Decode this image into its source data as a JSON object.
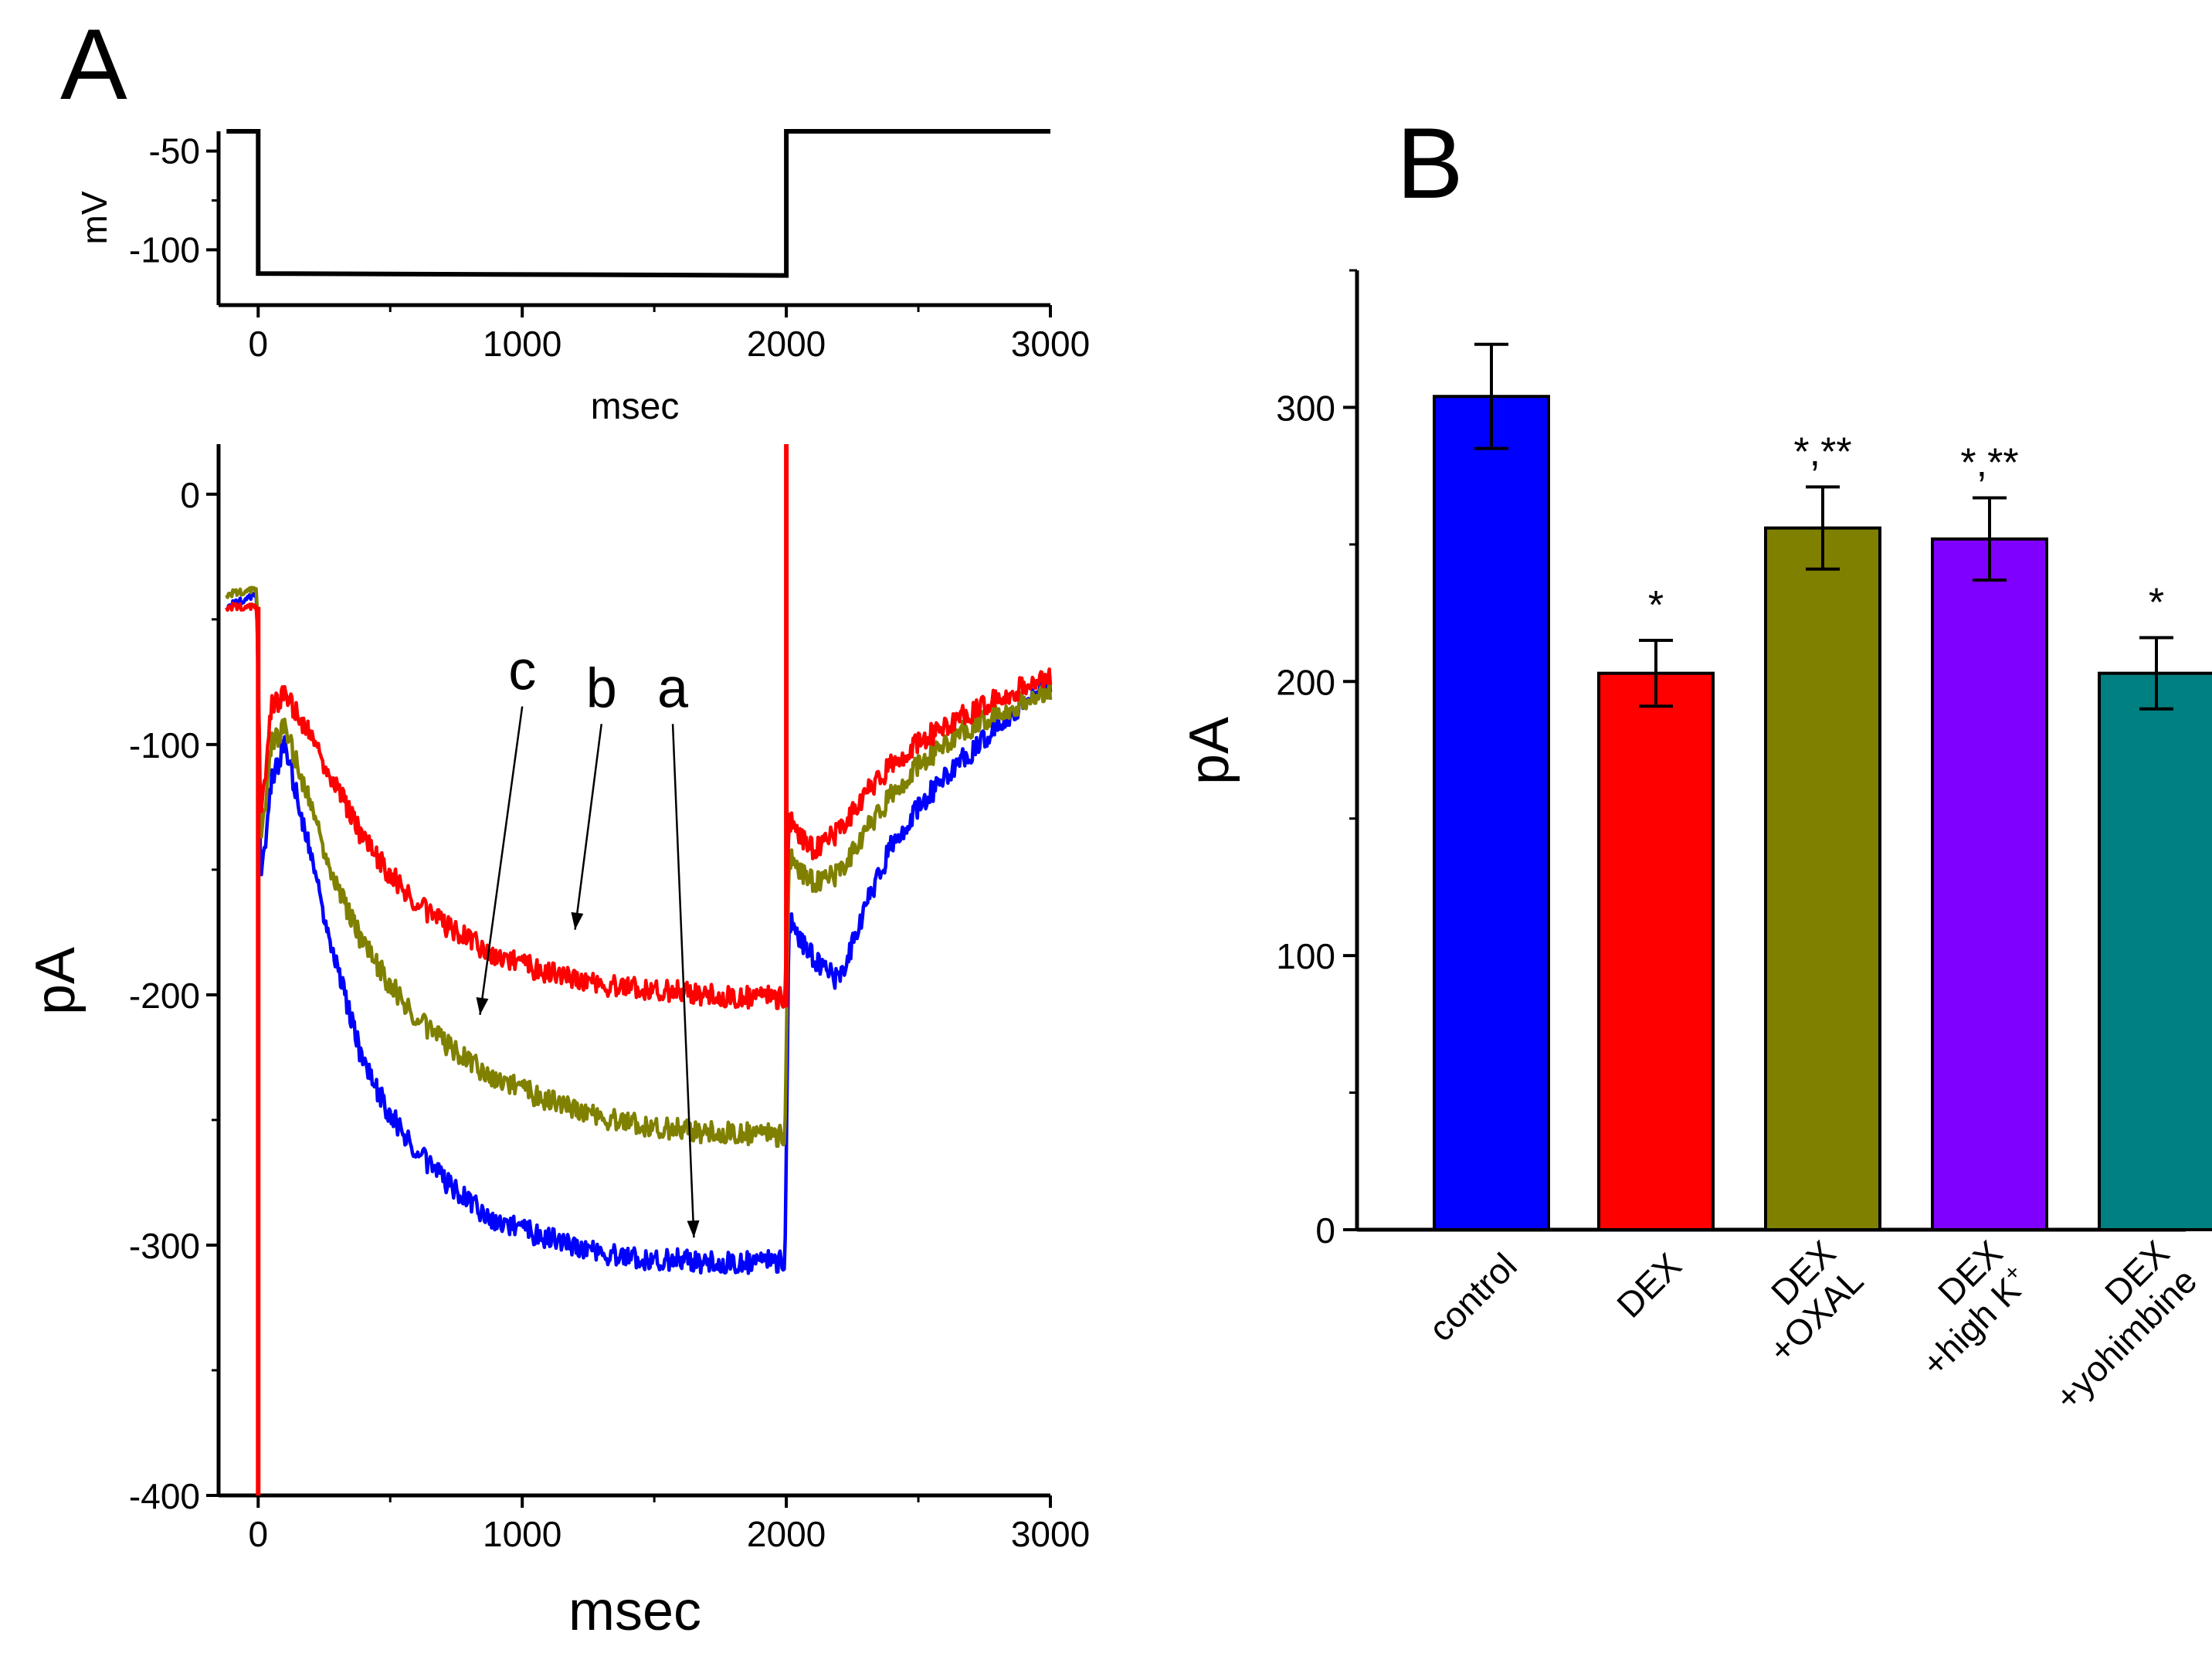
{
  "chart_data": [
    {
      "panel": "A",
      "type": "line",
      "title": "",
      "ylabel": "mV",
      "xlabel": "msec",
      "xlim": [
        -150,
        3000
      ],
      "ylim": [
        -128,
        -40
      ],
      "xticks": [
        0,
        1000,
        2000,
        3000
      ],
      "yticks": [
        -50,
        -100
      ],
      "grid": false,
      "series": [
        {
          "name": "voltage protocol",
          "color": "#000000",
          "points": [
            [
              -120,
              -40
            ],
            [
              0,
              -40
            ],
            [
              0,
              -112
            ],
            [
              2000,
              -113
            ],
            [
              2000,
              -40
            ],
            [
              3000,
              -40
            ]
          ]
        }
      ]
    },
    {
      "panel": "A",
      "type": "line",
      "title": "",
      "ylabel": "pA",
      "xlabel": "msec",
      "xlim": [
        -150,
        3000
      ],
      "ylim": [
        -400,
        20
      ],
      "xticks": [
        0,
        1000,
        2000,
        3000
      ],
      "yticks": [
        0,
        -100,
        -200,
        -300,
        -400
      ],
      "grid": false,
      "series": [
        {
          "name": "a",
          "color": "#0000ff",
          "x": [
            -120,
            -5,
            10,
            50,
            100,
            200,
            300,
            400,
            500,
            600,
            700,
            800,
            900,
            1000,
            1100,
            1200,
            1300,
            1400,
            1500,
            1600,
            1700,
            1800,
            1900,
            1995,
            2010,
            2100,
            2200,
            2300,
            2400,
            2500,
            2600,
            2700,
            2800,
            2900,
            3000
          ],
          "y": [
            -45,
            -40,
            -155,
            -115,
            -100,
            -145,
            -190,
            -228,
            -248,
            -262,
            -274,
            -283,
            -290,
            -294,
            -297,
            -301,
            -303,
            -305,
            -306,
            -306,
            -307,
            -307,
            -307,
            -306,
            -170,
            -185,
            -195,
            -165,
            -140,
            -125,
            -113,
            -103,
            -93,
            -83,
            -75
          ]
        },
        {
          "name": "b",
          "color": "#ff0000",
          "x": [
            -120,
            -5,
            10,
            50,
            100,
            200,
            300,
            400,
            500,
            600,
            700,
            800,
            900,
            1000,
            1100,
            1200,
            1300,
            1400,
            1500,
            1600,
            1700,
            1800,
            1900,
            1995,
            2010,
            2100,
            2200,
            2300,
            2400,
            2500,
            2600,
            2700,
            2800,
            2900,
            3000
          ],
          "y": [
            -45,
            -45,
            -130,
            -85,
            -80,
            -97,
            -118,
            -138,
            -152,
            -163,
            -172,
            -178,
            -184,
            -188,
            -191,
            -194,
            -196,
            -197,
            -198,
            -199,
            -200,
            -201,
            -201,
            -201,
            -130,
            -142,
            -135,
            -120,
            -108,
            -99,
            -93,
            -87,
            -82,
            -77,
            -72
          ]
        },
        {
          "name": "c",
          "color": "#808000",
          "x": [
            -120,
            -5,
            10,
            50,
            100,
            200,
            300,
            400,
            500,
            600,
            700,
            800,
            900,
            1000,
            1100,
            1200,
            1300,
            1400,
            1500,
            1600,
            1700,
            1800,
            1900,
            1995,
            2010,
            2100,
            2200,
            2300,
            2400,
            2500,
            2600,
            2700,
            2800,
            2900,
            3000
          ],
          "y": [
            -40,
            -38,
            -140,
            -100,
            -93,
            -125,
            -158,
            -180,
            -196,
            -209,
            -219,
            -227,
            -233,
            -238,
            -242,
            -246,
            -249,
            -251,
            -253,
            -254,
            -255,
            -255,
            -256,
            -256,
            -145,
            -155,
            -152,
            -135,
            -120,
            -108,
            -100,
            -93,
            -88,
            -83,
            -78
          ]
        },
        {
          "name": "red capacitive transients",
          "color": "#ff0000",
          "segments": [
            [
              [
                0,
                -45
              ],
              [
                0,
                -400
              ]
            ],
            [
              [
                2000,
                -205
              ],
              [
                2000,
                20
              ]
            ]
          ]
        }
      ],
      "annotations": [
        {
          "text": "c",
          "pos": [
            1000,
            -78
          ],
          "target": [
            840,
            -208
          ]
        },
        {
          "text": "b",
          "pos": [
            1300,
            -85
          ],
          "target": [
            1200,
            -174
          ]
        },
        {
          "text": "a",
          "pos": [
            1570,
            -85
          ],
          "target": [
            1650,
            -297
          ]
        }
      ]
    },
    {
      "panel": "B",
      "type": "bar",
      "title": "",
      "xlabel": "",
      "ylabel": "pA",
      "ylim": [
        0,
        350
      ],
      "yticks": [
        0,
        100,
        200,
        300
      ],
      "grid": false,
      "categories": [
        {
          "lines": [
            "control"
          ]
        },
        {
          "lines": [
            "DEX"
          ]
        },
        {
          "lines": [
            "DEX",
            "+OXAL"
          ]
        },
        {
          "lines": [
            "DEX",
            "+high K"
          ],
          "sup": "+"
        },
        {
          "lines": [
            "DEX",
            "+yohimbine"
          ]
        }
      ],
      "values": [
        304,
        203,
        256,
        252,
        203
      ],
      "errors": [
        19,
        12,
        15,
        15,
        13
      ],
      "colors": [
        "#0000ff",
        "#ff0000",
        "#808000",
        "#8000ff",
        "#008080"
      ],
      "significance": [
        "",
        "*",
        "*,**",
        "*,**",
        "*"
      ]
    }
  ],
  "panel_labels": {
    "a": "A",
    "b": "B"
  }
}
